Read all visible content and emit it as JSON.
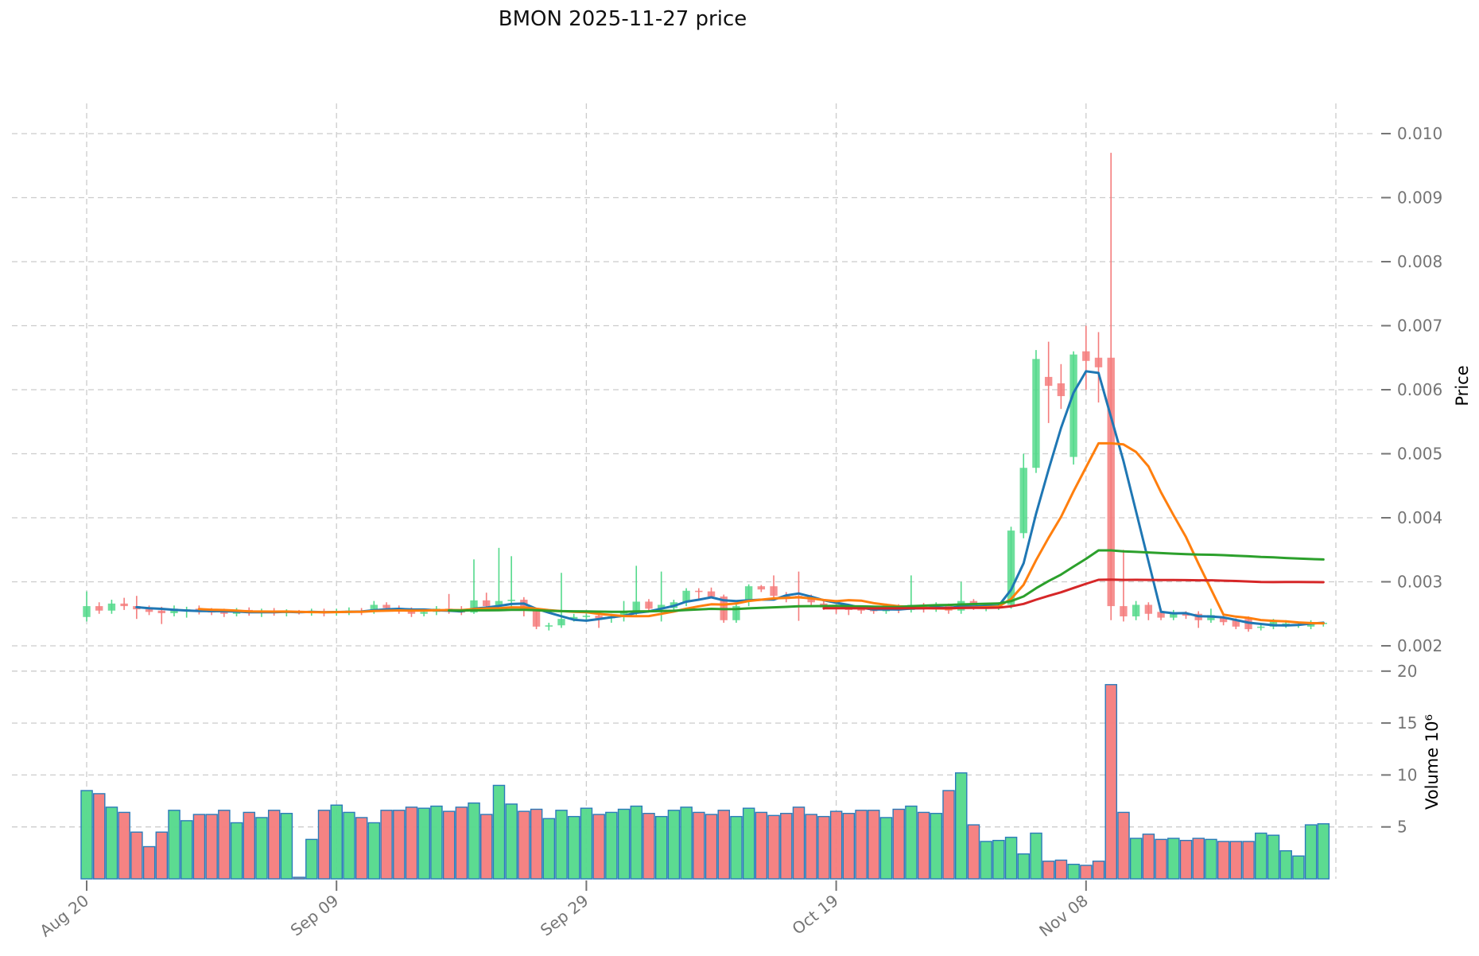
{
  "title": "BMON  2025-11-27  price",
  "chart_data": {
    "type": "candlestick",
    "title": "BMON  2025-11-27  price",
    "legend_position": "none",
    "grid": true,
    "x_tick_labels": [
      "Aug 20",
      "Sep 09",
      "Sep 29",
      "Oct 19",
      "Nov 08"
    ],
    "x_tick_indices": [
      0,
      20,
      40,
      60,
      80
    ],
    "x_gridline_indices": [
      0,
      20,
      40,
      60,
      80,
      100
    ],
    "price_axis": {
      "label": "Price",
      "min": 0.002,
      "max": 0.01,
      "ticks": [
        0.002,
        0.003,
        0.004,
        0.005,
        0.006,
        0.007,
        0.008,
        0.009,
        0.01
      ]
    },
    "volume_axis": {
      "label": "Volume  10⁶",
      "min": 0,
      "max": 21,
      "ticks": [
        5,
        10,
        15,
        20
      ],
      "unit": 1000000
    },
    "moving_averages": [
      {
        "period": 5,
        "color": "#1f77b4"
      },
      {
        "period": 10,
        "color": "#ff7f0e"
      },
      {
        "period": 30,
        "color": "#2ca02c"
      },
      {
        "period": 60,
        "color": "#d62728"
      }
    ],
    "colors": {
      "up": "#53d98b",
      "down": "#f47c7c",
      "volume_edge": "#2b7bba",
      "grid": "#cccccc",
      "tick_label": "#757575",
      "axis_label": "#000000",
      "title": "#111111"
    },
    "candles_format": [
      "open",
      "high",
      "low",
      "close",
      "volume_millions"
    ],
    "candles": [
      [
        0.00245,
        0.00285,
        0.00238,
        0.00262,
        8.5
      ],
      [
        0.00262,
        0.00268,
        0.0025,
        0.00255,
        8.2
      ],
      [
        0.00255,
        0.00272,
        0.0025,
        0.00266,
        6.9
      ],
      [
        0.00266,
        0.00275,
        0.00256,
        0.00262,
        6.4
      ],
      [
        0.00262,
        0.00278,
        0.00242,
        0.00257,
        4.5
      ],
      [
        0.00257,
        0.00263,
        0.00248,
        0.00253,
        3.1
      ],
      [
        0.00255,
        0.00261,
        0.00234,
        0.00251,
        4.5
      ],
      [
        0.00251,
        0.00263,
        0.00246,
        0.00258,
        6.6
      ],
      [
        0.00257,
        0.00261,
        0.00244,
        0.00257,
        5.6
      ],
      [
        0.00258,
        0.00263,
        0.00249,
        0.00253,
        6.2
      ],
      [
        0.00254,
        0.00259,
        0.00248,
        0.00252,
        6.2
      ],
      [
        0.00253,
        0.00258,
        0.00245,
        0.0025,
        6.6
      ],
      [
        0.0025,
        0.00259,
        0.00246,
        0.00256,
        5.4
      ],
      [
        0.00256,
        0.0026,
        0.00247,
        0.00251,
        6.4
      ],
      [
        0.00251,
        0.00258,
        0.00245,
        0.00254,
        5.9
      ],
      [
        0.00254,
        0.00259,
        0.00247,
        0.00252,
        6.6
      ],
      [
        0.00252,
        0.00257,
        0.00246,
        0.00253,
        6.3
      ],
      [
        0.00253,
        0.00256,
        0.00249,
        0.00252,
        0.15
      ],
      [
        0.00252,
        0.00258,
        0.00247,
        0.00254,
        3.8
      ],
      [
        0.00254,
        0.00258,
        0.00246,
        0.00252,
        6.6
      ],
      [
        0.00252,
        0.00258,
        0.00247,
        0.00253,
        7.1
      ],
      [
        0.00253,
        0.0026,
        0.00248,
        0.00255,
        6.4
      ],
      [
        0.00255,
        0.00259,
        0.00248,
        0.00254,
        5.9
      ],
      [
        0.00255,
        0.0027,
        0.0025,
        0.00264,
        5.4
      ],
      [
        0.00264,
        0.00268,
        0.00254,
        0.00259,
        6.6
      ],
      [
        0.00259,
        0.00263,
        0.0025,
        0.00257,
        6.6
      ],
      [
        0.00257,
        0.0026,
        0.00245,
        0.0025,
        6.9
      ],
      [
        0.0025,
        0.00257,
        0.00246,
        0.00253,
        6.8
      ],
      [
        0.00253,
        0.00262,
        0.00248,
        0.00258,
        7.0
      ],
      [
        0.00258,
        0.00281,
        0.0025,
        0.00256,
        6.5
      ],
      [
        0.00256,
        0.00262,
        0.00248,
        0.00252,
        6.9
      ],
      [
        0.00252,
        0.00335,
        0.0025,
        0.00271,
        7.3
      ],
      [
        0.00271,
        0.00283,
        0.00258,
        0.00262,
        6.2
      ],
      [
        0.00262,
        0.00353,
        0.00255,
        0.0027,
        9.0
      ],
      [
        0.0027,
        0.0034,
        0.0026,
        0.00272,
        7.2
      ],
      [
        0.00272,
        0.00276,
        0.00246,
        0.00255,
        6.5
      ],
      [
        0.00255,
        0.00258,
        0.00226,
        0.0023,
        6.7
      ],
      [
        0.0023,
        0.00236,
        0.00224,
        0.00232,
        5.8
      ],
      [
        0.00232,
        0.00314,
        0.00228,
        0.00242,
        6.6
      ],
      [
        0.00242,
        0.0025,
        0.00238,
        0.00245,
        6.0
      ],
      [
        0.00245,
        0.00252,
        0.0024,
        0.00247,
        6.8
      ],
      [
        0.00247,
        0.0025,
        0.00228,
        0.00243,
        6.2
      ],
      [
        0.00243,
        0.0025,
        0.00236,
        0.00246,
        6.4
      ],
      [
        0.00246,
        0.0027,
        0.00238,
        0.00253,
        6.7
      ],
      [
        0.00253,
        0.00325,
        0.00248,
        0.00269,
        7.0
      ],
      [
        0.00269,
        0.00273,
        0.00255,
        0.00258,
        6.3
      ],
      [
        0.00258,
        0.00316,
        0.00238,
        0.00264,
        6.0
      ],
      [
        0.00259,
        0.00272,
        0.00255,
        0.00268,
        6.6
      ],
      [
        0.00268,
        0.0029,
        0.00262,
        0.00286,
        6.9
      ],
      [
        0.00286,
        0.0029,
        0.00273,
        0.00284,
        6.4
      ],
      [
        0.00285,
        0.00291,
        0.00274,
        0.00277,
        6.2
      ],
      [
        0.00277,
        0.0028,
        0.00236,
        0.0024,
        6.6
      ],
      [
        0.0024,
        0.00265,
        0.00236,
        0.00262,
        6.0
      ],
      [
        0.00269,
        0.00296,
        0.00262,
        0.00293,
        6.8
      ],
      [
        0.00293,
        0.00295,
        0.00284,
        0.00288,
        6.4
      ],
      [
        0.00293,
        0.0031,
        0.00275,
        0.00278,
        6.1
      ],
      [
        0.00278,
        0.00284,
        0.00268,
        0.00273,
        6.3
      ],
      [
        0.00278,
        0.00316,
        0.00239,
        0.00277,
        6.9
      ],
      [
        0.00277,
        0.0028,
        0.00262,
        0.00268,
        6.2
      ],
      [
        0.00266,
        0.0027,
        0.00256,
        0.0026,
        6.0
      ],
      [
        0.0026,
        0.00264,
        0.0025,
        0.00258,
        6.5
      ],
      [
        0.00258,
        0.00262,
        0.00248,
        0.00256,
        6.3
      ],
      [
        0.00259,
        0.00262,
        0.0025,
        0.00255,
        6.6
      ],
      [
        0.00257,
        0.00261,
        0.0025,
        0.00254,
        6.6
      ],
      [
        0.00254,
        0.00266,
        0.0025,
        0.00262,
        5.9
      ],
      [
        0.00262,
        0.00265,
        0.00251,
        0.00256,
        6.7
      ],
      [
        0.00256,
        0.0031,
        0.00252,
        0.00264,
        7.0
      ],
      [
        0.00264,
        0.00267,
        0.00252,
        0.00257,
        6.4
      ],
      [
        0.00257,
        0.00268,
        0.00253,
        0.00263,
        6.3
      ],
      [
        0.00263,
        0.00266,
        0.0025,
        0.00255,
        8.5
      ],
      [
        0.00255,
        0.003,
        0.0025,
        0.0027,
        10.2
      ],
      [
        0.0027,
        0.00273,
        0.00256,
        0.00261,
        5.2
      ],
      [
        0.00258,
        0.00266,
        0.00254,
        0.00262,
        3.6
      ],
      [
        0.00262,
        0.00268,
        0.00256,
        0.00264,
        3.7
      ],
      [
        0.00264,
        0.00386,
        0.00258,
        0.0038,
        4.0
      ],
      [
        0.00376,
        0.005,
        0.00368,
        0.00478,
        2.4
      ],
      [
        0.00478,
        0.00662,
        0.0047,
        0.00648,
        4.4
      ],
      [
        0.0062,
        0.00675,
        0.00548,
        0.00606,
        1.7
      ],
      [
        0.0061,
        0.0064,
        0.0057,
        0.0059,
        1.8
      ],
      [
        0.00495,
        0.0066,
        0.00483,
        0.00655,
        1.4
      ],
      [
        0.0066,
        0.007,
        0.006,
        0.00645,
        1.3
      ],
      [
        0.0065,
        0.0069,
        0.0058,
        0.00635,
        1.7
      ],
      [
        0.0065,
        0.0097,
        0.0024,
        0.00262,
        18.7
      ],
      [
        0.00262,
        0.0035,
        0.00238,
        0.00246,
        6.4
      ],
      [
        0.00246,
        0.0027,
        0.0024,
        0.00264,
        3.9
      ],
      [
        0.00264,
        0.00268,
        0.0024,
        0.0025,
        4.3
      ],
      [
        0.00253,
        0.00258,
        0.0024,
        0.00244,
        3.8
      ],
      [
        0.00244,
        0.00256,
        0.0024,
        0.0025,
        3.9
      ],
      [
        0.0025,
        0.00254,
        0.00242,
        0.00247,
        3.7
      ],
      [
        0.0025,
        0.00254,
        0.00228,
        0.0024,
        3.9
      ],
      [
        0.0024,
        0.00258,
        0.00236,
        0.00248,
        3.8
      ],
      [
        0.00243,
        0.00247,
        0.00232,
        0.00237,
        3.6
      ],
      [
        0.0024,
        0.00243,
        0.00226,
        0.0023,
        3.6
      ],
      [
        0.00242,
        0.00246,
        0.00222,
        0.00226,
        3.6
      ],
      [
        0.00228,
        0.00234,
        0.00224,
        0.0023,
        4.4
      ],
      [
        0.0023,
        0.00242,
        0.00226,
        0.00238,
        4.2
      ],
      [
        0.00233,
        0.0024,
        0.00228,
        0.00235,
        2.7
      ],
      [
        0.00232,
        0.00238,
        0.00228,
        0.00234,
        2.2
      ],
      [
        0.0023,
        0.0024,
        0.00226,
        0.00237,
        5.2
      ],
      [
        0.00234,
        0.00238,
        0.0023,
        0.00236,
        5.3
      ]
    ]
  }
}
